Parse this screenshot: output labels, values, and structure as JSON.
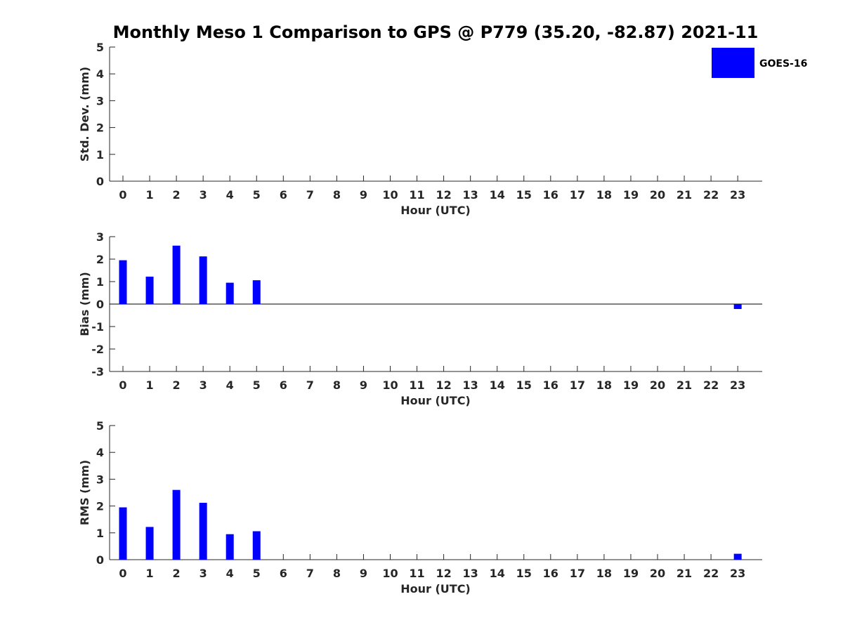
{
  "title": "Monthly Meso 1 Comparison to GPS @ P779 (35.20, -82.87) 2021-11",
  "legend": {
    "label": "GOES-16",
    "color": "#0000ff",
    "placement": "top-right"
  },
  "chart_data": [
    {
      "type": "bar",
      "xlabel": "Hour (UTC)",
      "ylabel": "Std. Dev. (mm)",
      "ylim": [
        0,
        5
      ],
      "yticks": [
        0,
        1,
        2,
        3,
        4,
        5
      ],
      "categories": [
        0,
        1,
        2,
        3,
        4,
        5,
        6,
        7,
        8,
        9,
        10,
        11,
        12,
        13,
        14,
        15,
        16,
        17,
        18,
        19,
        20,
        21,
        22,
        23
      ],
      "series": [
        {
          "name": "GOES-16",
          "values": [
            null,
            null,
            null,
            null,
            null,
            null,
            null,
            null,
            null,
            null,
            null,
            null,
            null,
            null,
            null,
            null,
            null,
            null,
            null,
            null,
            null,
            null,
            null,
            null
          ]
        }
      ],
      "grid": false
    },
    {
      "type": "bar",
      "xlabel": "Hour (UTC)",
      "ylabel": "Bias (mm)",
      "ylim": [
        -3,
        3
      ],
      "yticks": [
        -3,
        -2,
        -1,
        0,
        1,
        2,
        3
      ],
      "categories": [
        0,
        1,
        2,
        3,
        4,
        5,
        6,
        7,
        8,
        9,
        10,
        11,
        12,
        13,
        14,
        15,
        16,
        17,
        18,
        19,
        20,
        21,
        22,
        23
      ],
      "series": [
        {
          "name": "GOES-16",
          "values": [
            1.95,
            1.22,
            2.6,
            2.12,
            0.95,
            1.06,
            null,
            null,
            null,
            null,
            null,
            null,
            null,
            null,
            null,
            null,
            null,
            null,
            null,
            null,
            null,
            null,
            null,
            -0.22
          ]
        }
      ],
      "grid": false
    },
    {
      "type": "bar",
      "xlabel": "Hour (UTC)",
      "ylabel": "RMS (mm)",
      "ylim": [
        0,
        5
      ],
      "yticks": [
        0,
        1,
        2,
        3,
        4,
        5
      ],
      "categories": [
        0,
        1,
        2,
        3,
        4,
        5,
        6,
        7,
        8,
        9,
        10,
        11,
        12,
        13,
        14,
        15,
        16,
        17,
        18,
        19,
        20,
        21,
        22,
        23
      ],
      "series": [
        {
          "name": "GOES-16",
          "values": [
            1.95,
            1.22,
            2.6,
            2.12,
            0.95,
            1.06,
            null,
            null,
            null,
            null,
            null,
            null,
            null,
            null,
            null,
            null,
            null,
            null,
            null,
            null,
            null,
            null,
            null,
            0.22
          ]
        }
      ],
      "grid": false
    }
  ]
}
